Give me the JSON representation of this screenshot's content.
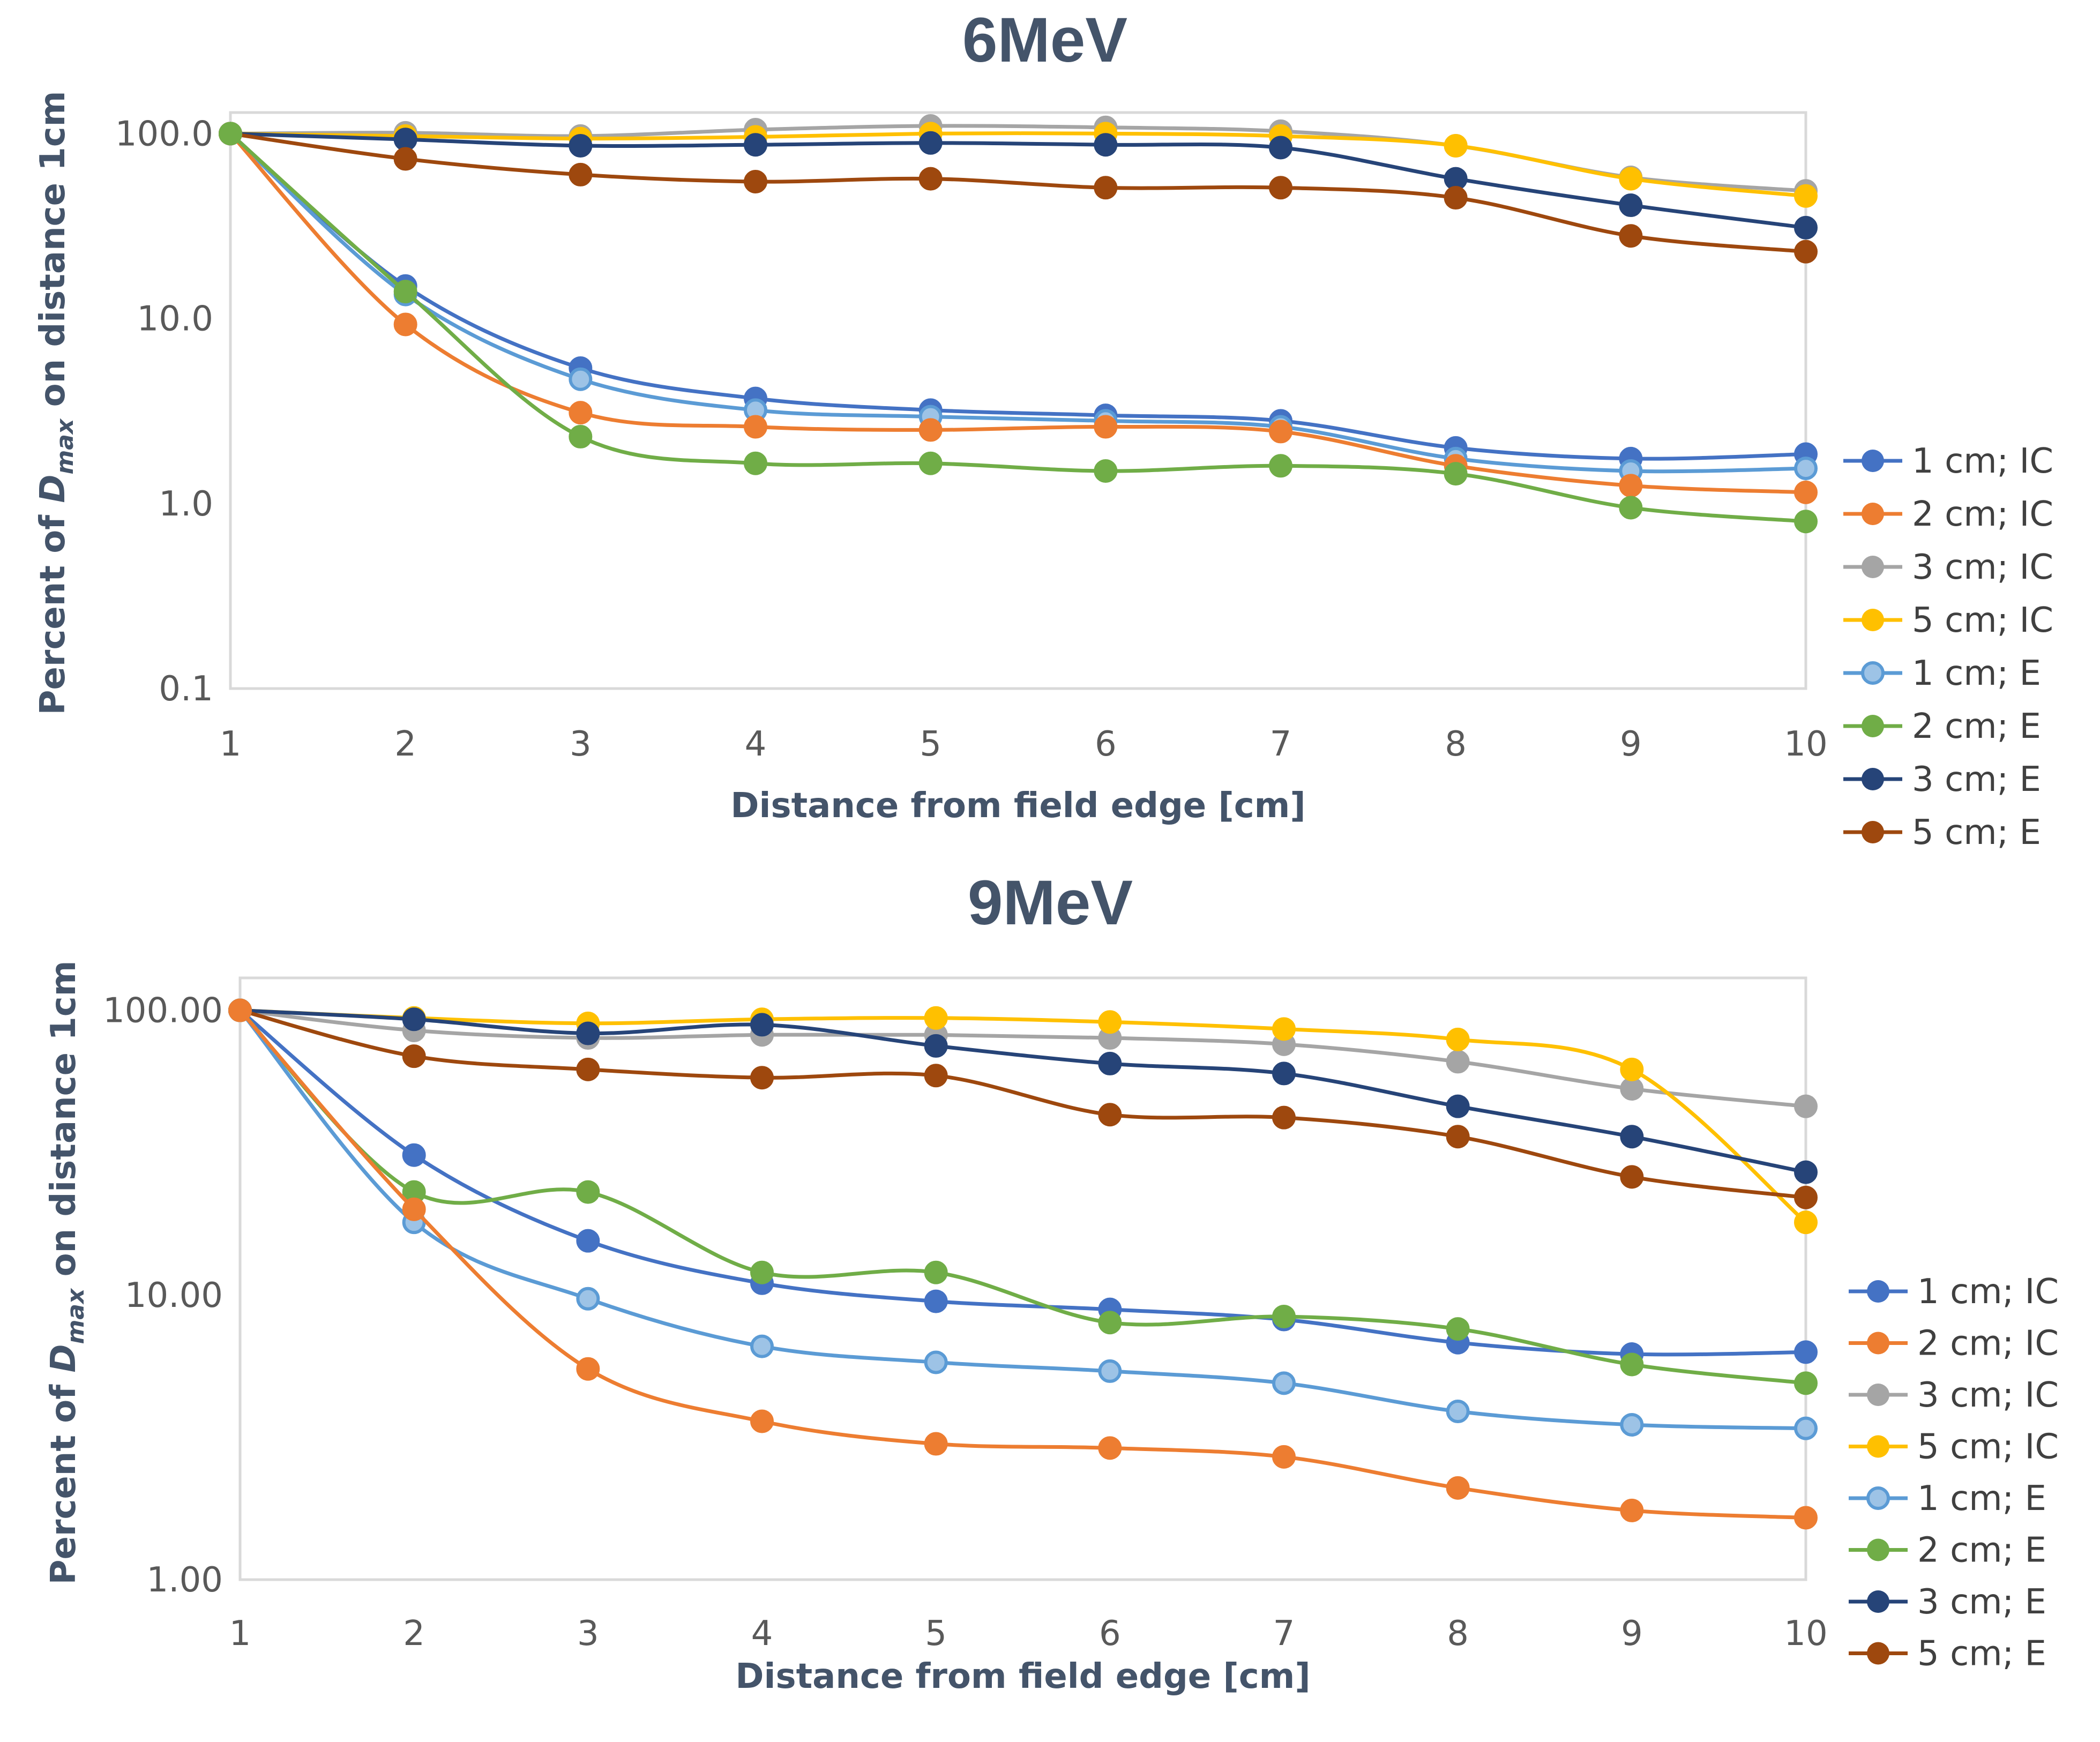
{
  "chart_data": [
    {
      "type": "line",
      "title": "6MeV",
      "xlabel": "Distance from field edge [cm]",
      "ylabel_prefix": "Percent of ",
      "ylabel_symbol": "D",
      "ylabel_subscript": "max",
      "ylabel_suffix": " on distance 1cm",
      "yscale": "log",
      "ylim": [
        0.1,
        130
      ],
      "x": [
        1,
        2,
        3,
        4,
        5,
        6,
        7,
        8,
        9,
        10
      ],
      "x_tick_labels": [
        "1",
        "2",
        "3",
        "4",
        "5",
        "6",
        "7",
        "8",
        "9",
        "10"
      ],
      "y_ticks": [
        0.1,
        1,
        10,
        100
      ],
      "y_tick_labels": [
        "0.1",
        "1.0",
        "10.0",
        "100.0"
      ],
      "legend_position": "right",
      "series": [
        {
          "name": "3 cm; IC",
          "color": "#a5a5a5",
          "marker": "filled",
          "values": [
            100,
            101,
            97,
            105,
            110,
            108,
            103,
            86,
            58,
            49
          ]
        },
        {
          "name": "5 cm; IC",
          "color": "#ffc000",
          "marker": "filled",
          "values": [
            100,
            97,
            94,
            96,
            100,
            100,
            97,
            86,
            57,
            46
          ]
        },
        {
          "name": "3 cm; E",
          "color": "#264478",
          "marker": "filled",
          "values": [
            100,
            93,
            86,
            87,
            89,
            87,
            84,
            57,
            41,
            31
          ]
        },
        {
          "name": "5 cm; E",
          "color": "#9e480e",
          "marker": "filled",
          "values": [
            100,
            73,
            60,
            55,
            57,
            51,
            51,
            45,
            28,
            23
          ]
        },
        {
          "name": "1 cm; IC",
          "color": "#4472c4",
          "marker": "filled",
          "values": [
            100,
            15,
            5.4,
            3.7,
            3.2,
            3.0,
            2.8,
            2.0,
            1.75,
            1.85
          ]
        },
        {
          "name": "1 cm; E",
          "color": "#9dc3e6",
          "stroke": "#5b9bd5",
          "marker": "open",
          "values": [
            100,
            13.5,
            4.7,
            3.2,
            2.95,
            2.8,
            2.6,
            1.75,
            1.5,
            1.55
          ]
        },
        {
          "name": "2 cm; IC",
          "color": "#ed7d31",
          "marker": "filled",
          "values": [
            100,
            9.3,
            3.1,
            2.6,
            2.5,
            2.6,
            2.45,
            1.6,
            1.25,
            1.15
          ]
        },
        {
          "name": "2 cm; E",
          "color": "#70ad47",
          "marker": "filled",
          "values": [
            100,
            14,
            2.3,
            1.65,
            1.65,
            1.5,
            1.6,
            1.45,
            0.95,
            0.8
          ]
        }
      ],
      "legend_order": [
        "1 cm; IC",
        "2 cm; IC",
        "3 cm; IC",
        "5 cm; IC",
        "1 cm; E",
        "2 cm; E",
        "3 cm; E",
        "5 cm; E"
      ]
    },
    {
      "type": "line",
      "title": "9MeV",
      "xlabel": "Distance from field edge [cm]",
      "ylabel_prefix": "Percent of ",
      "ylabel_symbol": "D",
      "ylabel_subscript": "max",
      "ylabel_suffix": " on distance 1cm",
      "yscale": "log",
      "ylim": [
        1,
        130
      ],
      "x": [
        1,
        2,
        3,
        4,
        5,
        6,
        7,
        8,
        9,
        10
      ],
      "x_tick_labels": [
        "1",
        "2",
        "3",
        "4",
        "5",
        "6",
        "7",
        "8",
        "9",
        "10"
      ],
      "y_ticks": [
        1,
        10,
        100
      ],
      "y_tick_labels": [
        "1.00",
        "10.00",
        "100.00"
      ],
      "legend_position": "right",
      "series": [
        {
          "name": "3 cm; IC",
          "color": "#a5a5a5",
          "marker": "filled",
          "values": [
            100,
            85,
            80,
            82,
            82,
            80,
            76,
            66,
            53,
            46
          ]
        },
        {
          "name": "5 cm; IC",
          "color": "#ffc000",
          "marker": "filled",
          "values": [
            100,
            94,
            90,
            93,
            94,
            91,
            86,
            79,
            62,
            18
          ]
        },
        {
          "name": "3 cm; E",
          "color": "#264478",
          "marker": "filled",
          "values": [
            100,
            93,
            83,
            89,
            75,
            65,
            60,
            46,
            36,
            27
          ]
        },
        {
          "name": "5 cm; E",
          "color": "#9e480e",
          "marker": "filled",
          "values": [
            100,
            69,
            62,
            58,
            59,
            43,
            42,
            36,
            26,
            22
          ]
        },
        {
          "name": "1 cm; IC",
          "color": "#4472c4",
          "marker": "filled",
          "values": [
            100,
            31,
            15.5,
            11,
            9.5,
            8.9,
            8.2,
            6.8,
            6.2,
            6.3
          ]
        },
        {
          "name": "2 cm; E",
          "color": "#70ad47",
          "marker": "filled",
          "values": [
            100,
            23,
            23,
            12,
            12,
            8.0,
            8.4,
            7.6,
            5.7,
            4.9
          ]
        },
        {
          "name": "1 cm; E",
          "color": "#9dc3e6",
          "stroke": "#5b9bd5",
          "marker": "open",
          "values": [
            100,
            18,
            9.7,
            6.6,
            5.8,
            5.4,
            4.9,
            3.9,
            3.5,
            3.4
          ]
        },
        {
          "name": "2 cm; IC",
          "color": "#ed7d31",
          "marker": "filled",
          "values": [
            100,
            20,
            5.5,
            3.6,
            3.0,
            2.9,
            2.7,
            2.1,
            1.75,
            1.65
          ]
        }
      ],
      "legend_order": [
        "1 cm; IC",
        "2 cm; IC",
        "3 cm; IC",
        "5 cm; IC",
        "1 cm; E",
        "2 cm; E",
        "3 cm; E",
        "5 cm; E"
      ]
    }
  ]
}
